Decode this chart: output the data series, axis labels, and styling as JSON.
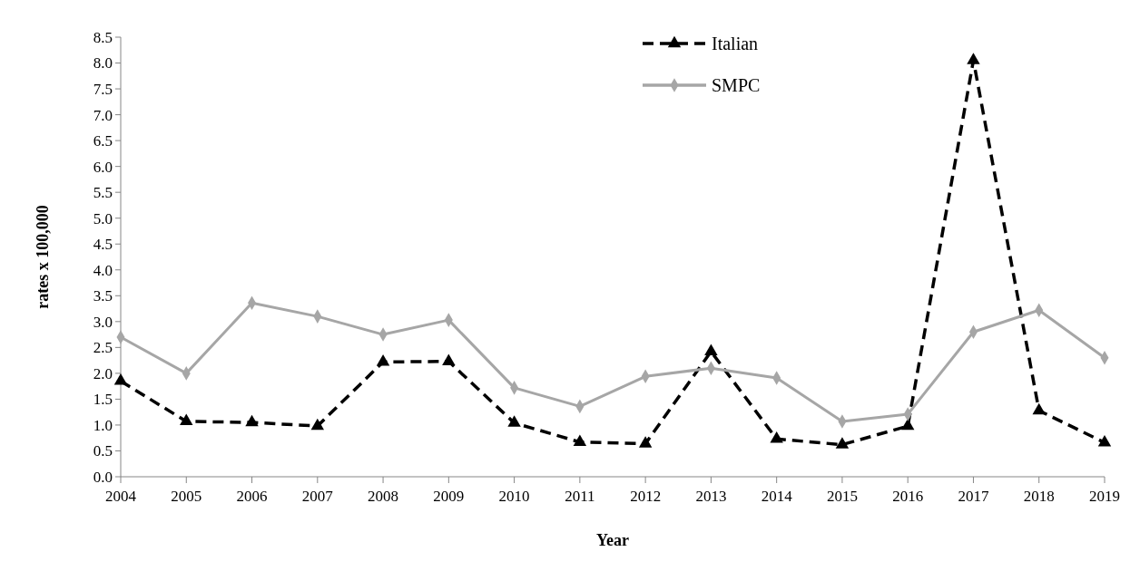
{
  "chart_data": {
    "type": "line",
    "xlabel": "Year",
    "ylabel": "rates x 100,000",
    "categories": [
      "2004",
      "2005",
      "2006",
      "2007",
      "2008",
      "2009",
      "2010",
      "2011",
      "2012",
      "2013",
      "2014",
      "2015",
      "2016",
      "2017",
      "2018",
      "2019"
    ],
    "ylim": [
      0,
      8.5
    ],
    "yticks": [
      {
        "value": 0,
        "label": "0.0"
      },
      {
        "value": 0.5,
        "label": "0.5"
      },
      {
        "value": 1,
        "label": "1.0"
      },
      {
        "value": 1.5,
        "label": "1.5"
      },
      {
        "value": 2,
        "label": "2.0"
      },
      {
        "value": 2.5,
        "label": "2.5"
      },
      {
        "value": 3,
        "label": "3.0"
      },
      {
        "value": 3.5,
        "label": "3.5"
      },
      {
        "value": 4,
        "label": "4.0"
      },
      {
        "value": 4.5,
        "label": "4.5"
      },
      {
        "value": 5,
        "label": "5.0"
      },
      {
        "value": 5.5,
        "label": "5.5"
      },
      {
        "value": 6,
        "label": "6.0"
      },
      {
        "value": 6.5,
        "label": "6.5"
      },
      {
        "value": 7,
        "label": "7.0"
      },
      {
        "value": 7.5,
        "label": "7.5"
      },
      {
        "value": 8,
        "label": "8.0"
      },
      {
        "value": 8.5,
        "label": "8.5"
      }
    ],
    "legend": "top",
    "grid": false,
    "series": [
      {
        "name": "Italian",
        "color": "#000000",
        "marker": "triangle",
        "line_style": "dashed",
        "values": [
          1.85,
          1.07,
          1.05,
          0.98,
          2.22,
          2.23,
          1.04,
          0.67,
          0.64,
          2.42,
          0.73,
          0.62,
          0.98,
          8.05,
          1.28,
          0.66
        ]
      },
      {
        "name": "SMPC",
        "color": "#a6a6a6",
        "marker": "diamond",
        "line_style": "solid",
        "values": [
          2.7,
          2.0,
          3.36,
          3.1,
          2.75,
          3.03,
          1.72,
          1.36,
          1.94,
          2.1,
          1.91,
          1.07,
          1.21,
          2.8,
          3.22,
          2.3
        ]
      }
    ]
  }
}
